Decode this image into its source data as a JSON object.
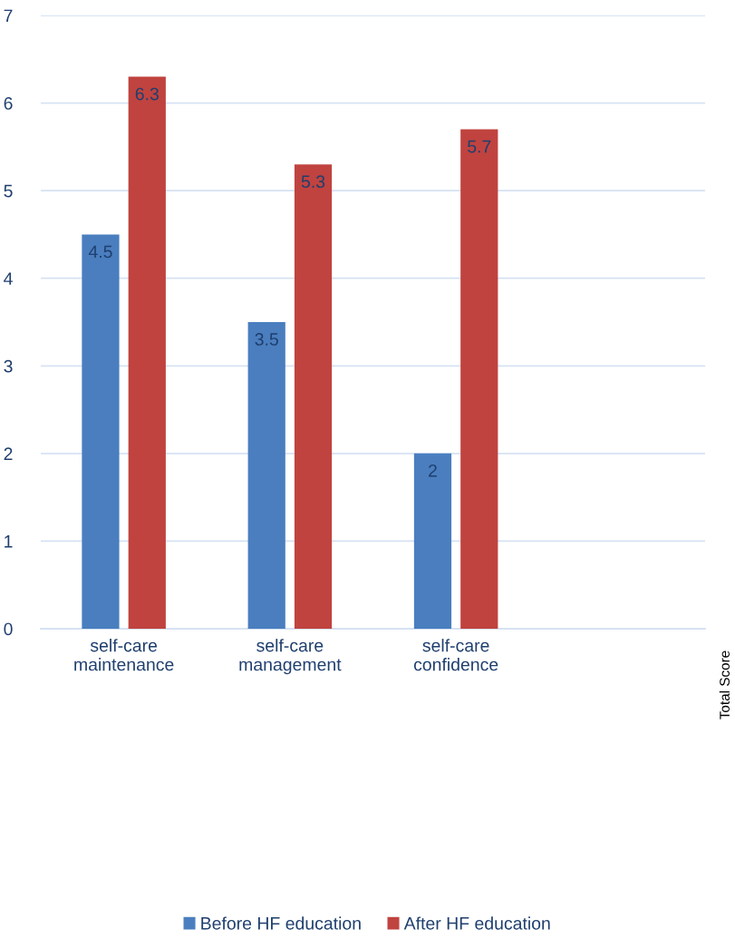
{
  "chart_data": {
    "type": "bar",
    "categories": [
      "self-care\nmaintenance",
      "self-care\nmanagement",
      "self-care\nconfidence",
      null
    ],
    "series": [
      {
        "name": "Before HF education",
        "color": "#4a7ebf",
        "values": [
          4.5,
          3.5,
          2,
          null
        ]
      },
      {
        "name": "After HF education",
        "color": "#c0433f",
        "values": [
          6.3,
          5.3,
          5.7,
          null
        ]
      }
    ],
    "ylim": [
      0,
      7
    ],
    "yticks": [
      0,
      1,
      2,
      3,
      4,
      5,
      6,
      7
    ],
    "grid": "y",
    "legend": "bottom",
    "data_labels": true,
    "annotations": [
      "Total Score"
    ]
  }
}
